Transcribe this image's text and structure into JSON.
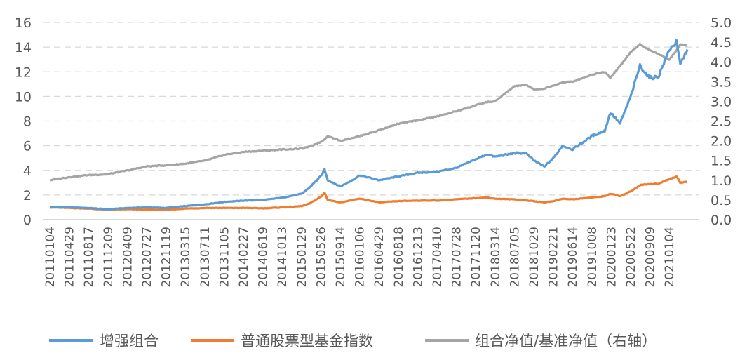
{
  "chart_data": {
    "type": "line",
    "title": "",
    "left_axis": {
      "min": 0,
      "max": 16,
      "step": 2,
      "ticks": [
        "0",
        "2",
        "4",
        "6",
        "8",
        "10",
        "12",
        "14",
        "16"
      ]
    },
    "right_axis": {
      "min": 0,
      "max": 5,
      "step": 0.5,
      "ticks": [
        "0.0",
        "0.5",
        "1.0",
        "1.5",
        "2.0",
        "2.5",
        "3.0",
        "3.5",
        "4.0",
        "4.5",
        "5.0"
      ]
    },
    "grid": true,
    "legend_position": "bottom",
    "x_labels": [
      "20110104",
      "20110429",
      "20110817",
      "20111209",
      "20120409",
      "20120727",
      "20121119",
      "20130315",
      "20130711",
      "20131105",
      "20140227",
      "20140619",
      "20141013",
      "20150129",
      "20150526",
      "20150914",
      "20160106",
      "20160429",
      "20160818",
      "20161213",
      "20170410",
      "20170728",
      "20171120",
      "20180314",
      "20180705",
      "20181029",
      "20190221",
      "20190614",
      "20191008",
      "20200123",
      "20200522",
      "20200909",
      "20210104"
    ],
    "series": [
      {
        "name": "增强组合",
        "axis": "left",
        "color": "#5b9bd5",
        "x": [
          "20110104",
          "20110429",
          "20110817",
          "20111209",
          "20120409",
          "20120727",
          "20121119",
          "20130315",
          "20130711",
          "20131105",
          "20140227",
          "20140619",
          "20141013",
          "20150129",
          "20150315",
          "20150526",
          "20150612",
          "20150701",
          "20150914",
          "20151110",
          "20160106",
          "20160429",
          "20160818",
          "20161213",
          "20170410",
          "20170728",
          "20171120",
          "20180125",
          "20180314",
          "20180705",
          "20180910",
          "20181029",
          "20181229",
          "20190221",
          "20190415",
          "20190614",
          "20191008",
          "20191220",
          "20200123",
          "20200320",
          "20200522",
          "20200715",
          "20200909",
          "20201101",
          "20210104",
          "20210215",
          "20210310",
          "20210420"
        ],
        "values": [
          1.0,
          1.0,
          0.95,
          0.85,
          0.95,
          1.0,
          0.95,
          1.1,
          1.25,
          1.45,
          1.55,
          1.6,
          1.8,
          2.1,
          2.6,
          3.6,
          4.1,
          3.2,
          2.7,
          3.1,
          3.6,
          3.2,
          3.5,
          3.8,
          3.9,
          4.2,
          4.9,
          5.3,
          5.1,
          5.4,
          5.4,
          4.8,
          4.3,
          5.0,
          6.0,
          5.7,
          6.8,
          7.2,
          8.7,
          7.8,
          10.0,
          12.5,
          11.5,
          11.6,
          13.8,
          14.4,
          12.6,
          13.8
        ]
      },
      {
        "name": "普通股票型基金指数",
        "axis": "left",
        "color": "#ed7d31",
        "x": [
          "20110104",
          "20110429",
          "20110817",
          "20111209",
          "20120409",
          "20120727",
          "20121119",
          "20130315",
          "20130711",
          "20131105",
          "20140227",
          "20140619",
          "20141013",
          "20150129",
          "20150315",
          "20150526",
          "20150612",
          "20150701",
          "20150914",
          "20160106",
          "20160429",
          "20160818",
          "20161213",
          "20170410",
          "20170728",
          "20171120",
          "20180125",
          "20180314",
          "20180705",
          "20181029",
          "20181229",
          "20190221",
          "20190415",
          "20190614",
          "20191008",
          "20191220",
          "20200123",
          "20200320",
          "20200522",
          "20200715",
          "20200909",
          "20201101",
          "20210104",
          "20210215",
          "20210310",
          "20210420"
        ],
        "values": [
          1.0,
          0.95,
          0.9,
          0.8,
          0.85,
          0.82,
          0.8,
          0.9,
          0.95,
          0.95,
          0.95,
          0.92,
          1.0,
          1.1,
          1.3,
          1.9,
          2.2,
          1.6,
          1.4,
          1.7,
          1.4,
          1.5,
          1.55,
          1.55,
          1.65,
          1.75,
          1.8,
          1.7,
          1.65,
          1.5,
          1.4,
          1.5,
          1.7,
          1.65,
          1.8,
          1.9,
          2.1,
          1.9,
          2.3,
          2.8,
          2.9,
          2.9,
          3.3,
          3.5,
          3.0,
          3.1
        ]
      },
      {
        "name": "组合净值/基准净值（右轴）",
        "axis": "right",
        "color": "#a5a5a5",
        "x": [
          "20110104",
          "20110429",
          "20110817",
          "20111209",
          "20120409",
          "20120727",
          "20121119",
          "20130315",
          "20130711",
          "20131105",
          "20140227",
          "20140619",
          "20141013",
          "20150129",
          "20150315",
          "20150526",
          "20150701",
          "20150914",
          "20160106",
          "20160429",
          "20160818",
          "20161213",
          "20170410",
          "20170728",
          "20171120",
          "20180125",
          "20180314",
          "20180705",
          "20180910",
          "20181029",
          "20181229",
          "20190221",
          "20190415",
          "20190614",
          "20191008",
          "20191220",
          "20200123",
          "20200320",
          "20200522",
          "20200715",
          "20200909",
          "20201101",
          "20210104",
          "20210215",
          "20210310",
          "20210420"
        ],
        "values": [
          1.0,
          1.08,
          1.13,
          1.15,
          1.25,
          1.35,
          1.38,
          1.42,
          1.5,
          1.65,
          1.72,
          1.75,
          1.78,
          1.8,
          1.85,
          1.98,
          2.12,
          2.0,
          2.12,
          2.27,
          2.43,
          2.52,
          2.62,
          2.75,
          2.9,
          2.98,
          3.0,
          3.38,
          3.42,
          3.3,
          3.32,
          3.4,
          3.48,
          3.5,
          3.68,
          3.75,
          3.6,
          3.9,
          4.25,
          4.45,
          4.3,
          4.2,
          4.05,
          4.3,
          4.45,
          4.42
        ]
      }
    ]
  }
}
